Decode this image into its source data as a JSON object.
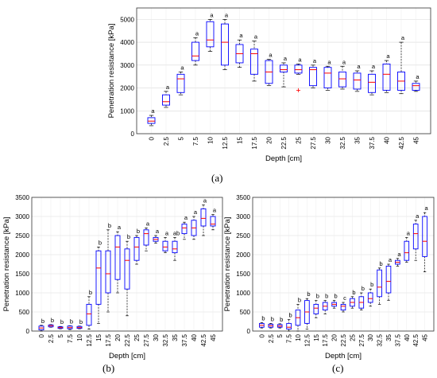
{
  "captions": {
    "a": "(a)",
    "b": "(b)",
    "c": "(c)"
  },
  "colors": {
    "box": "#0000ff",
    "median": "#ff0000",
    "whisker": "#000000",
    "outlier": "#ff0000"
  },
  "chart_data": [
    {
      "id": "a",
      "type": "boxplot",
      "xlabel": "Depth [cm]",
      "ylabel": "Penetration resistance [kPa]",
      "ylim": [
        0,
        5500
      ],
      "yticks": [
        0,
        1000,
        2000,
        3000,
        4000,
        5000
      ],
      "categories": [
        "0",
        "2.5",
        "5",
        "7.5",
        "10",
        "12.5",
        "15",
        "17.5",
        "20",
        "22.5",
        "25",
        "27.5",
        "30",
        "32.5",
        "35",
        "37.5",
        "40",
        "42.5",
        "45"
      ],
      "boxes": [
        {
          "min": 350,
          "q1": 450,
          "median": 550,
          "q3": 700,
          "max": 800,
          "letter": "a"
        },
        {
          "min": 1150,
          "q1": 1250,
          "median": 1400,
          "q3": 1700,
          "max": 1850,
          "letter": "a"
        },
        {
          "min": 1700,
          "q1": 1800,
          "median": 2400,
          "q3": 2600,
          "max": 2700,
          "letter": "a"
        },
        {
          "min": 3000,
          "q1": 3200,
          "median": 3400,
          "q3": 4000,
          "max": 4200,
          "letter": "a"
        },
        {
          "min": 3600,
          "q1": 3800,
          "median": 4100,
          "q3": 4900,
          "max": 5000,
          "letter": "a"
        },
        {
          "min": 2800,
          "q1": 3000,
          "median": 4000,
          "q3": 4800,
          "max": 5000,
          "letter": "a"
        },
        {
          "min": 2900,
          "q1": 3100,
          "median": 3500,
          "q3": 3900,
          "max": 4100,
          "letter": "a"
        },
        {
          "min": 2300,
          "q1": 2600,
          "median": 3500,
          "q3": 3700,
          "max": 4050,
          "letter": "a"
        },
        {
          "min": 2100,
          "q1": 2200,
          "median": 2700,
          "q3": 3200,
          "max": 3250,
          "letter": "a"
        },
        {
          "min": 2050,
          "q1": 2700,
          "median": 2800,
          "q3": 3000,
          "max": 3100,
          "letter": "a"
        },
        {
          "min": 2600,
          "q1": 2650,
          "median": 2800,
          "q3": 3000,
          "max": 3050,
          "letter": "a",
          "outliers": [
            1900
          ]
        },
        {
          "min": 2000,
          "q1": 2100,
          "median": 2800,
          "q3": 2900,
          "max": 3000,
          "letter": "a"
        },
        {
          "min": 1900,
          "q1": 2000,
          "median": 2650,
          "q3": 2900,
          "max": 2950,
          "letter": "a"
        },
        {
          "min": 1950,
          "q1": 2050,
          "median": 2400,
          "q3": 2700,
          "max": 2950,
          "letter": "a"
        },
        {
          "min": 1850,
          "q1": 1950,
          "median": 2350,
          "q3": 2650,
          "max": 2750,
          "letter": "a"
        },
        {
          "min": 1700,
          "q1": 1800,
          "median": 2250,
          "q3": 2600,
          "max": 2750,
          "letter": "a"
        },
        {
          "min": 1800,
          "q1": 1900,
          "median": 2600,
          "q3": 3050,
          "max": 3200,
          "letter": "a"
        },
        {
          "min": 1750,
          "q1": 1900,
          "median": 2300,
          "q3": 2700,
          "max": 4000,
          "letter": "a"
        },
        {
          "min": 1850,
          "q1": 1900,
          "median": 2100,
          "q3": 2200,
          "max": 2300,
          "letter": "a"
        }
      ]
    },
    {
      "id": "b",
      "type": "boxplot",
      "xlabel": "Depth [cm]",
      "ylabel": "Penetration resistance [kPa]",
      "ylim": [
        0,
        3500
      ],
      "yticks": [
        0,
        500,
        1000,
        1500,
        2000,
        2500,
        3000,
        3500
      ],
      "categories": [
        "0",
        "2.5",
        "5",
        "7.5",
        "10",
        "12.5",
        "15",
        "17.5",
        "20",
        "22.5",
        "25",
        "27.5",
        "30",
        "32.5",
        "35",
        "37.5",
        "40",
        "42.5",
        "45"
      ],
      "boxes": [
        {
          "min": 0,
          "q1": 30,
          "median": 80,
          "q3": 130,
          "max": 150,
          "letter": "b"
        },
        {
          "min": 100,
          "q1": 110,
          "median": 140,
          "q3": 160,
          "max": 170,
          "letter": "b"
        },
        {
          "min": 60,
          "q1": 70,
          "median": 90,
          "q3": 110,
          "max": 120,
          "letter": "b"
        },
        {
          "min": 40,
          "q1": 60,
          "median": 90,
          "q3": 130,
          "max": 140,
          "letter": "b"
        },
        {
          "min": 60,
          "q1": 70,
          "median": 90,
          "q3": 120,
          "max": 130,
          "letter": "b"
        },
        {
          "min": 50,
          "q1": 150,
          "median": 450,
          "q3": 700,
          "max": 900,
          "letter": "b"
        },
        {
          "min": 200,
          "q1": 700,
          "median": 1650,
          "q3": 2100,
          "max": 2200,
          "letter": "b"
        },
        {
          "min": 500,
          "q1": 1000,
          "median": 1500,
          "q3": 2100,
          "max": 2650,
          "letter": "b"
        },
        {
          "min": 1000,
          "q1": 1350,
          "median": 2200,
          "q3": 2500,
          "max": 2600,
          "letter": "a"
        },
        {
          "min": 400,
          "q1": 1100,
          "median": 1850,
          "q3": 2150,
          "max": 2350,
          "letter": "b"
        },
        {
          "min": 1750,
          "q1": 1850,
          "median": 2200,
          "q3": 2450,
          "max": 2500,
          "letter": "b"
        },
        {
          "min": 2100,
          "q1": 2250,
          "median": 2550,
          "q3": 2650,
          "max": 2700,
          "letter": "a"
        },
        {
          "min": 2300,
          "q1": 2350,
          "median": 2400,
          "q3": 2450,
          "max": 2500,
          "letter": "a"
        },
        {
          "min": 2050,
          "q1": 2100,
          "median": 2200,
          "q3": 2350,
          "max": 2450,
          "letter": "a"
        },
        {
          "min": 1850,
          "q1": 2050,
          "median": 2150,
          "q3": 2350,
          "max": 2450,
          "letter": "ab"
        },
        {
          "min": 2400,
          "q1": 2550,
          "median": 2700,
          "q3": 2800,
          "max": 2850,
          "letter": "a"
        },
        {
          "min": 2400,
          "q1": 2500,
          "median": 2700,
          "q3": 2900,
          "max": 3000,
          "letter": "a"
        },
        {
          "min": 2500,
          "q1": 2750,
          "median": 2950,
          "q3": 3200,
          "max": 3300,
          "letter": "a"
        },
        {
          "min": 2650,
          "q1": 2750,
          "median": 2800,
          "q3": 3000,
          "max": 3050,
          "letter": "a"
        }
      ]
    },
    {
      "id": "c",
      "type": "boxplot",
      "xlabel": "Depth [cm]",
      "ylabel": "Penetration resistance [kPa]",
      "ylim": [
        0,
        3500
      ],
      "yticks": [
        0,
        500,
        1000,
        1500,
        2000,
        2500,
        3000,
        3500
      ],
      "categories": [
        "0",
        "2.5",
        "5",
        "7.5",
        "10",
        "12.5",
        "15",
        "17.5",
        "20",
        "22.5",
        "25",
        "27.5",
        "30",
        "32.5",
        "35",
        "37.5",
        "40",
        "42.5",
        "45"
      ],
      "boxes": [
        {
          "min": 80,
          "q1": 100,
          "median": 150,
          "q3": 200,
          "max": 220,
          "letter": "b"
        },
        {
          "min": 80,
          "q1": 100,
          "median": 140,
          "q3": 180,
          "max": 200,
          "letter": "b"
        },
        {
          "min": 80,
          "q1": 100,
          "median": 130,
          "q3": 170,
          "max": 190,
          "letter": "b"
        },
        {
          "min": 0,
          "q1": 50,
          "median": 100,
          "q3": 200,
          "max": 300,
          "letter": "b"
        },
        {
          "min": 0,
          "q1": 150,
          "median": 350,
          "q3": 550,
          "max": 700,
          "letter": "b"
        },
        {
          "min": 50,
          "q1": 200,
          "median": 500,
          "q3": 800,
          "max": 850,
          "letter": "b"
        },
        {
          "min": 350,
          "q1": 450,
          "median": 600,
          "q3": 700,
          "max": 800,
          "letter": "b"
        },
        {
          "min": 450,
          "q1": 550,
          "median": 650,
          "q3": 750,
          "max": 800,
          "letter": "b"
        },
        {
          "min": 600,
          "q1": 650,
          "median": 700,
          "q3": 750,
          "max": 800,
          "letter": "b"
        },
        {
          "min": 500,
          "q1": 550,
          "median": 650,
          "q3": 700,
          "max": 750,
          "letter": "c"
        },
        {
          "min": 600,
          "q1": 650,
          "median": 750,
          "q3": 850,
          "max": 900,
          "letter": "b"
        },
        {
          "min": 550,
          "q1": 600,
          "median": 750,
          "q3": 900,
          "max": 1000,
          "letter": "b"
        },
        {
          "min": 650,
          "q1": 750,
          "median": 850,
          "q3": 1000,
          "max": 1100,
          "letter": "b"
        },
        {
          "min": 700,
          "q1": 900,
          "median": 1150,
          "q3": 1600,
          "max": 1650,
          "letter": "b"
        },
        {
          "min": 800,
          "q1": 1000,
          "median": 1300,
          "q3": 1700,
          "max": 1750,
          "letter": "a"
        },
        {
          "min": 1700,
          "q1": 1750,
          "median": 1800,
          "q3": 1850,
          "max": 1900,
          "letter": "a"
        },
        {
          "min": 1800,
          "q1": 1850,
          "median": 2050,
          "q3": 2350,
          "max": 2450,
          "letter": "a"
        },
        {
          "min": 1850,
          "q1": 2150,
          "median": 2550,
          "q3": 2800,
          "max": 2900,
          "letter": "a"
        },
        {
          "min": 1550,
          "q1": 1950,
          "median": 2350,
          "q3": 3000,
          "max": 3100,
          "letter": "a"
        }
      ]
    }
  ]
}
